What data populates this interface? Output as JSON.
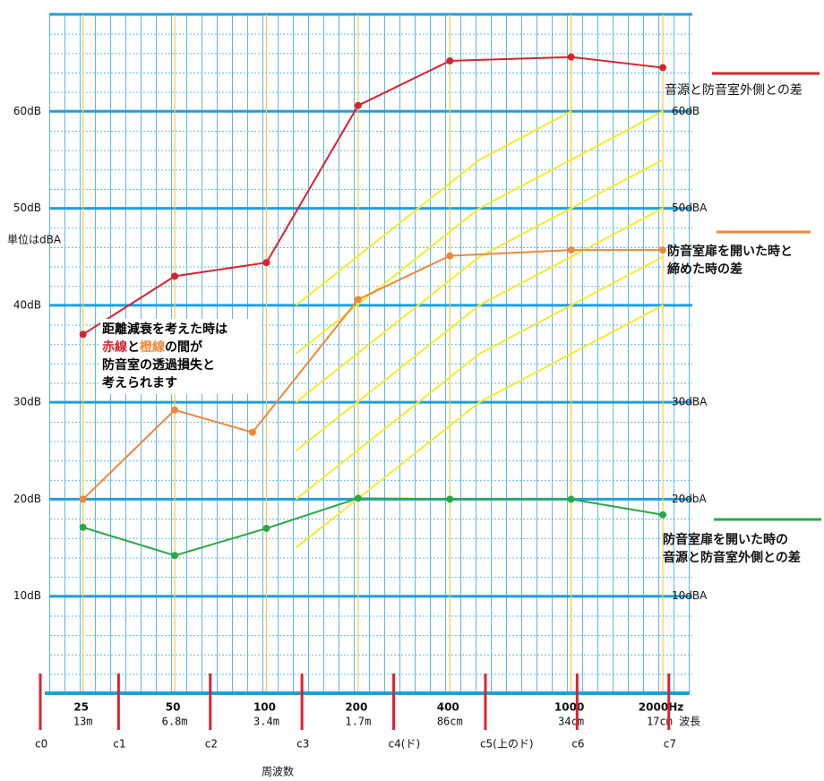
{
  "chart_data": {
    "type": "line",
    "x_scale": "log",
    "xlim": [
      17.5,
      2450
    ],
    "ylim": [
      0,
      70
    ],
    "y2lim": [
      0,
      70
    ],
    "y_label": "単位はdBA",
    "x_label": "周波数",
    "xticks": [
      25,
      50,
      100,
      200,
      400,
      1000,
      {
        "value": 2000,
        "label": "2000Hz"
      }
    ],
    "wavelength_labels": [
      "13m",
      "6.8m",
      "3.4m",
      "1.7m",
      "86cm",
      "34cm",
      "17cm 波長"
    ],
    "yticks": [
      {
        "value": 10,
        "label": "10dB"
      },
      {
        "value": 20,
        "label": "20dB"
      },
      {
        "value": 30,
        "label": "30dB"
      },
      {
        "value": 40,
        "label": "40dB"
      },
      {
        "value": 50,
        "label": "50dB"
      },
      {
        "value": 60,
        "label": "60dB"
      }
    ],
    "y2ticks": [
      {
        "value": 10,
        "label": "10dBA"
      },
      {
        "value": 20,
        "label": "20dbA"
      },
      {
        "value": 30,
        "label": "30dBA"
      },
      {
        "value": 50,
        "label": "50dBA"
      },
      {
        "value": 60,
        "label": "60dB"
      }
    ],
    "octave_marks": [
      {
        "value": 16.35,
        "label": "c0"
      },
      {
        "value": 32.7,
        "label": "c1"
      },
      {
        "value": 65.41,
        "label": "c2"
      },
      {
        "value": 130.8,
        "label": "c3"
      },
      {
        "value": 261.6,
        "label": "c4(ド)"
      },
      {
        "value": 523.3,
        "label": "c5(上のド)"
      },
      {
        "value": 1046.5,
        "label": "c6"
      },
      {
        "value": 2093,
        "label": "c7"
      }
    ],
    "octave_mark_color": "#dd2230",
    "grid_color": "#1ea0dc",
    "series": [
      {
        "name": "音源と防音室外側との差",
        "color": "#d9232e",
        "x": [
          25,
          50,
          100,
          200,
          400,
          1000,
          2000
        ],
        "values": [
          37,
          43,
          44.4,
          60.6,
          65.2,
          65.6,
          64.5
        ]
      },
      {
        "name": "防音室扉を開いた時と\n締めた時の差",
        "color": "#f0883a",
        "x": [
          25,
          50,
          90,
          200,
          400,
          1000,
          2000
        ],
        "values": [
          20,
          29.2,
          26.9,
          40.6,
          45.1,
          45.7,
          45.7
        ]
      },
      {
        "name": "防音室扉を開いた時の\n音源と防音室外側との差",
        "color": "#2aa845",
        "x": [
          25,
          50,
          100,
          200,
          400,
          1000,
          2000
        ],
        "values": [
          17.1,
          14.2,
          17,
          20.1,
          20,
          20,
          18.4
        ]
      }
    ],
    "reference_lines": {
      "color": "#f5ec2a",
      "lines": [
        {
          "x": [
            125,
            500,
            2000
          ],
          "values": [
            15,
            30,
            40
          ]
        },
        {
          "x": [
            125,
            500,
            2000
          ],
          "values": [
            20,
            35,
            45
          ]
        },
        {
          "x": [
            125,
            500,
            2000
          ],
          "values": [
            25,
            40,
            50
          ]
        },
        {
          "x": [
            125,
            500,
            2000
          ],
          "values": [
            30,
            45,
            55
          ]
        },
        {
          "x": [
            125,
            500,
            2000
          ],
          "values": [
            35,
            50,
            60
          ]
        },
        {
          "x": [
            125,
            500,
            1000
          ],
          "values": [
            40,
            55,
            60
          ]
        }
      ]
    },
    "annotation": [
      "距離減衰を考えた時は",
      "赤線",
      "と",
      "橙線",
      "の間が",
      "防音室の透過損失と",
      "考えられます"
    ]
  }
}
